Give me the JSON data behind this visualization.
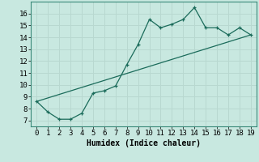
{
  "xlabel": "Humidex (Indice chaleur)",
  "background_color": "#c8e8e0",
  "grid_color": "#b8d8d0",
  "line_color": "#1a6b5a",
  "xlim": [
    -0.5,
    19.5
  ],
  "ylim": [
    6.5,
    17.0
  ],
  "xticks": [
    0,
    1,
    2,
    3,
    4,
    5,
    6,
    7,
    8,
    9,
    10,
    11,
    12,
    13,
    14,
    15,
    16,
    17,
    18,
    19
  ],
  "yticks": [
    7,
    8,
    9,
    10,
    11,
    12,
    13,
    14,
    15,
    16
  ],
  "line1_x": [
    0,
    1,
    2,
    3,
    4,
    5,
    6,
    7,
    8,
    9,
    10,
    11,
    12,
    13,
    14,
    15,
    16,
    17,
    18,
    19
  ],
  "line1_y": [
    8.6,
    7.7,
    7.1,
    7.1,
    7.6,
    9.3,
    9.5,
    9.9,
    11.7,
    13.4,
    15.5,
    14.8,
    15.1,
    15.5,
    16.5,
    14.8,
    14.8,
    14.2,
    14.8,
    14.2
  ],
  "line2_x": [
    0,
    19
  ],
  "line2_y": [
    8.6,
    14.2
  ],
  "font_family": "monospace",
  "label_fontsize": 7,
  "tick_fontsize": 6.5
}
